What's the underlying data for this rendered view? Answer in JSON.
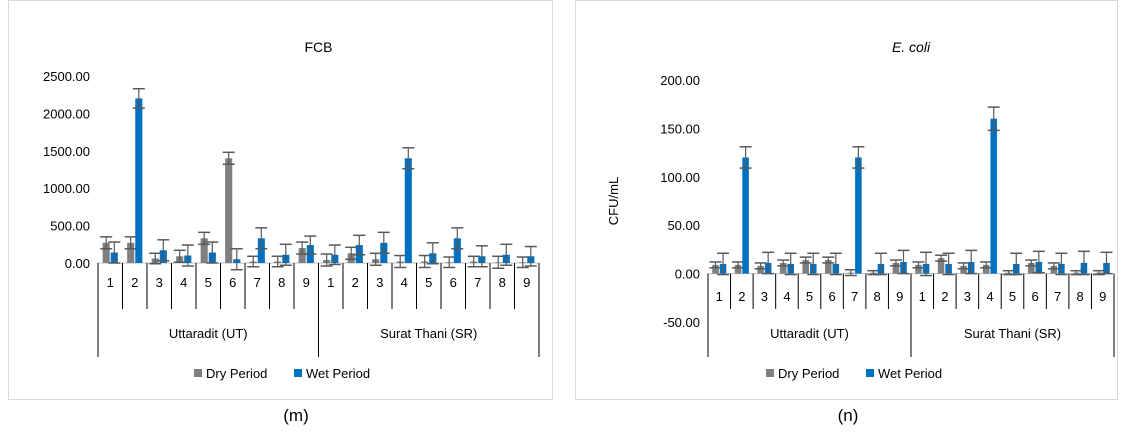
{
  "captions": [
    "(m)",
    "(n)"
  ],
  "chart_data": [
    {
      "type": "bar",
      "title": "FCB",
      "title_italic": false,
      "ylabel": "",
      "ylim": [
        0,
        2500
      ],
      "yticks": [
        0,
        500,
        1000,
        1500,
        2000,
        2500
      ],
      "ytick_labels": [
        "0.00",
        "500.00",
        "1000.00",
        "1500.00",
        "2000.00",
        "2500.00"
      ],
      "groups": [
        {
          "name": "Uttaradit (UT)",
          "categories": [
            "1",
            "2",
            "3",
            "4",
            "5",
            "6",
            "7",
            "8",
            "9"
          ]
        },
        {
          "name": "Surat Thani (SR)",
          "categories": [
            "1",
            "2",
            "3",
            "4",
            "5",
            "6",
            "7",
            "8",
            "9"
          ]
        }
      ],
      "legend_position": "bottom",
      "series": [
        {
          "name": "Dry Period",
          "color": "#7f7f7f",
          "values": [
            270,
            270,
            60,
            90,
            330,
            1400,
            20,
            20,
            200,
            40,
            130,
            50,
            20,
            20,
            10,
            20,
            10,
            10
          ],
          "errors": [
            80,
            80,
            70,
            80,
            80,
            80,
            70,
            70,
            80,
            80,
            80,
            80,
            80,
            80,
            70,
            70,
            80,
            70
          ]
        },
        {
          "name": "Wet Period",
          "color": "#0070c0",
          "values": [
            140,
            2200,
            170,
            100,
            140,
            50,
            330,
            110,
            240,
            110,
            240,
            270,
            1400,
            130,
            330,
            90,
            110,
            90
          ],
          "errors": [
            140,
            130,
            140,
            140,
            140,
            140,
            140,
            140,
            120,
            130,
            130,
            140,
            140,
            140,
            140,
            140,
            140,
            130
          ]
        }
      ]
    },
    {
      "type": "bar",
      "title": "E. coli",
      "title_italic": true,
      "ylabel": "CFU/mL",
      "ylim": [
        -50,
        200
      ],
      "yticks": [
        -50,
        0,
        50,
        100,
        150,
        200
      ],
      "ytick_labels": [
        "-50.00",
        "0.00",
        "50.00",
        "100.00",
        "150.00",
        "200.00"
      ],
      "groups": [
        {
          "name": "Uttaradit (UT)",
          "categories": [
            "1",
            "2",
            "3",
            "4",
            "5",
            "6",
            "7",
            "8",
            "9"
          ]
        },
        {
          "name": "Surat Thani (SR)",
          "categories": [
            "1",
            "2",
            "3",
            "4",
            "5",
            "6",
            "7",
            "8",
            "9"
          ]
        }
      ],
      "legend_position": "bottom",
      "series": [
        {
          "name": "Dry Period",
          "color": "#7f7f7f",
          "values": [
            9,
            9,
            8,
            11,
            14,
            14,
            1,
            1,
            11,
            9,
            16,
            8,
            9,
            1,
            11,
            8,
            1,
            1
          ],
          "errors": [
            3,
            3,
            3,
            3,
            3,
            3,
            3,
            2,
            3,
            3,
            3,
            3,
            3,
            2,
            3,
            3,
            2,
            2
          ]
        },
        {
          "name": "Wet Period",
          "color": "#0070c0",
          "values": [
            10,
            120,
            11,
            10,
            10,
            10,
            120,
            10,
            12,
            10,
            10,
            12,
            160,
            10,
            12,
            10,
            11,
            11
          ],
          "errors": [
            11,
            11,
            11,
            11,
            11,
            11,
            11,
            11,
            12,
            12,
            11,
            12,
            12,
            11,
            11,
            11,
            12,
            11
          ]
        }
      ]
    }
  ]
}
